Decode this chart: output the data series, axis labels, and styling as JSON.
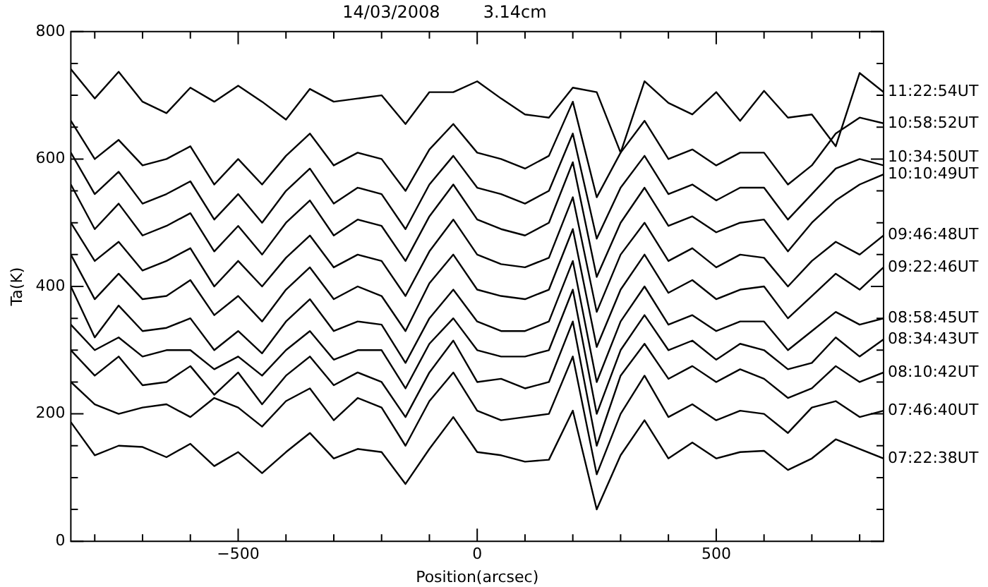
{
  "chart_data": {
    "type": "line",
    "title": "14/03/2008        3.14cm",
    "xlabel": "Position(arcsec)",
    "ylabel": "Ta(K)",
    "x": [
      -850,
      -800,
      -750,
      -700,
      -650,
      -600,
      -550,
      -500,
      -450,
      -400,
      -350,
      -300,
      -250,
      -200,
      -150,
      -100,
      -50,
      0,
      50,
      100,
      150,
      200,
      250,
      300,
      350,
      400,
      450,
      500,
      550,
      600,
      650,
      700,
      750,
      800,
      850
    ],
    "series": [
      {
        "name": "07:22:38UT",
        "color": "#000000",
        "values": [
          187,
          135,
          150,
          148,
          132,
          153,
          118,
          140,
          107,
          140,
          170,
          130,
          145,
          140,
          90,
          145,
          195,
          140,
          135,
          125,
          128,
          205,
          50,
          135,
          190,
          130,
          155,
          130,
          140,
          142,
          112,
          130,
          160,
          145,
          130
        ]
      },
      {
        "name": "07:46:40UT",
        "color": "#000000",
        "values": [
          250,
          215,
          200,
          210,
          215,
          195,
          225,
          210,
          180,
          220,
          240,
          190,
          225,
          210,
          150,
          220,
          265,
          205,
          190,
          195,
          200,
          290,
          105,
          200,
          260,
          195,
          215,
          190,
          205,
          200,
          170,
          210,
          220,
          195,
          205
        ]
      },
      {
        "name": "08:10:42UT",
        "color": "#000000",
        "values": [
          300,
          260,
          290,
          245,
          250,
          275,
          230,
          265,
          215,
          260,
          290,
          245,
          265,
          250,
          195,
          265,
          315,
          250,
          255,
          240,
          250,
          345,
          150,
          260,
          310,
          255,
          275,
          250,
          270,
          255,
          225,
          240,
          275,
          250,
          265
        ]
      },
      {
        "name": "08:34:43UT",
        "color": "#000000",
        "values": [
          340,
          300,
          320,
          290,
          300,
          300,
          270,
          290,
          260,
          300,
          330,
          285,
          300,
          300,
          240,
          310,
          350,
          300,
          290,
          290,
          300,
          395,
          200,
          300,
          355,
          300,
          315,
          285,
          310,
          300,
          270,
          280,
          320,
          290,
          317
        ]
      },
      {
        "name": "08:58:45UT",
        "color": "#000000",
        "values": [
          400,
          320,
          370,
          330,
          335,
          350,
          300,
          330,
          295,
          345,
          380,
          330,
          345,
          340,
          280,
          350,
          395,
          345,
          330,
          330,
          345,
          440,
          250,
          345,
          400,
          340,
          355,
          330,
          345,
          345,
          300,
          330,
          360,
          340,
          350
        ]
      },
      {
        "name": "09:22:46UT",
        "color": "#000000",
        "values": [
          450,
          380,
          420,
          380,
          385,
          410,
          355,
          385,
          345,
          395,
          430,
          380,
          400,
          385,
          330,
          405,
          450,
          395,
          385,
          380,
          395,
          490,
          305,
          395,
          450,
          390,
          410,
          380,
          395,
          400,
          350,
          385,
          420,
          395,
          430
        ]
      },
      {
        "name": "09:46:48UT",
        "color": "#000000",
        "values": [
          500,
          440,
          470,
          425,
          440,
          460,
          400,
          440,
          400,
          445,
          480,
          430,
          450,
          440,
          385,
          455,
          505,
          450,
          435,
          430,
          445,
          540,
          360,
          450,
          500,
          440,
          460,
          430,
          450,
          445,
          400,
          440,
          470,
          450,
          480
        ]
      },
      {
        "name": "10:10:49UT",
        "color": "#000000",
        "values": [
          560,
          490,
          530,
          480,
          495,
          515,
          455,
          495,
          450,
          500,
          535,
          480,
          505,
          495,
          440,
          510,
          560,
          505,
          490,
          480,
          500,
          595,
          415,
          500,
          555,
          495,
          510,
          485,
          500,
          505,
          455,
          500,
          535,
          560,
          576
        ]
      },
      {
        "name": "10:34:50UT",
        "color": "#000000",
        "values": [
          610,
          545,
          580,
          530,
          545,
          565,
          505,
          545,
          500,
          550,
          585,
          530,
          555,
          545,
          490,
          560,
          605,
          555,
          545,
          530,
          550,
          640,
          475,
          555,
          605,
          545,
          560,
          535,
          555,
          555,
          505,
          545,
          585,
          600,
          590
        ]
      },
      {
        "name": "10:58:52UT",
        "color": "#000000",
        "values": [
          660,
          600,
          630,
          590,
          600,
          620,
          560,
          600,
          560,
          605,
          640,
          590,
          610,
          600,
          550,
          615,
          655,
          610,
          600,
          585,
          605,
          690,
          540,
          610,
          660,
          600,
          615,
          590,
          610,
          610,
          560,
          590,
          640,
          665,
          656
        ]
      },
      {
        "name": "11:22:54UT",
        "color": "#000000",
        "values": [
          741,
          695,
          737,
          690,
          672,
          712,
          690,
          715,
          690,
          662,
          710,
          690,
          695,
          700,
          655,
          705,
          705,
          722,
          695,
          670,
          665,
          712,
          705,
          610,
          722,
          688,
          670,
          705,
          660,
          707,
          665,
          670,
          620,
          735,
          705
        ]
      }
    ],
    "xlim": [
      -850,
      850
    ],
    "xticks": [
      {
        "value": -800,
        "label": null
      },
      {
        "value": -700,
        "label": null
      },
      {
        "value": -600,
        "label": null
      },
      {
        "value": -500,
        "label": "−500"
      },
      {
        "value": -400,
        "label": null
      },
      {
        "value": -300,
        "label": null
      },
      {
        "value": -200,
        "label": null
      },
      {
        "value": -100,
        "label": null
      },
      0,
      {
        "value": 100,
        "label": null
      },
      {
        "value": 200,
        "label": null
      },
      {
        "value": 300,
        "label": null
      },
      {
        "value": 400,
        "label": null
      },
      500,
      {
        "value": 600,
        "label": null
      },
      {
        "value": 700,
        "label": null
      },
      {
        "value": 800,
        "label": null
      }
    ],
    "ylim": [
      0,
      800
    ],
    "yticks": [
      0,
      {
        "value": 50,
        "label": null
      },
      {
        "value": 100,
        "label": null
      },
      {
        "value": 150,
        "label": null
      },
      200,
      {
        "value": 250,
        "label": null
      },
      {
        "value": 300,
        "label": null
      },
      {
        "value": 350,
        "label": null
      },
      400,
      {
        "value": 450,
        "label": null
      },
      {
        "value": 500,
        "label": null
      },
      {
        "value": 550,
        "label": null
      },
      600,
      {
        "value": 650,
        "label": null
      },
      {
        "value": 700,
        "label": null
      },
      {
        "value": 750,
        "label": null
      },
      800
    ],
    "grid": false,
    "legend": "right",
    "marker": "none",
    "line_style": "solid"
  }
}
